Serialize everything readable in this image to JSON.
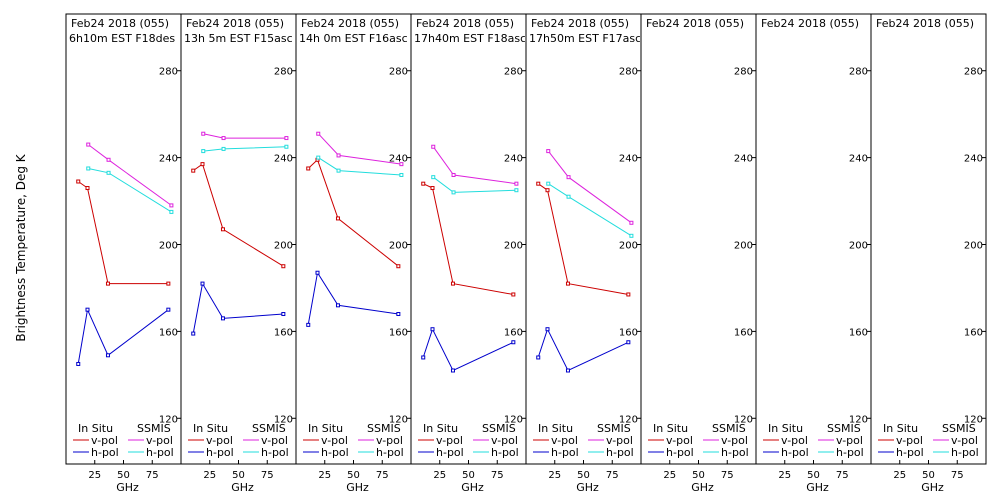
{
  "figure": {
    "ylabel": "Brightness Temperature, Deg K",
    "xlabel": "GHz",
    "legend_labels": {
      "in_situ": "In Situ",
      "ssmis": "SSMIS",
      "vpol": "v-pol",
      "hpol": "h-pol"
    },
    "colors": {
      "insitu_v": "#cc0000",
      "insitu_h": "#0000cc",
      "ssmis_v": "#dd22dd",
      "ssmis_h": "#22dddd"
    }
  },
  "chart_data": [
    {
      "type": "line",
      "title": "Feb24 2018 (055)",
      "subtitle": "6h10m EST F18des",
      "xlabel": "GHz",
      "ylabel": "Brightness Temperature, Deg K",
      "xlim": [
        0,
        100
      ],
      "ylim": [
        110,
        290
      ],
      "xticks": [
        0,
        25,
        50,
        75,
        100
      ],
      "yticks": [
        120,
        160,
        200,
        240,
        280
      ],
      "series": [
        {
          "name": "In Situ v-pol",
          "x": [
            10.65,
            18.7,
            36.5,
            89
          ],
          "y": [
            229,
            226,
            182,
            182
          ]
        },
        {
          "name": "In Situ h-pol",
          "x": [
            10.65,
            18.7,
            36.5,
            89
          ],
          "y": [
            145,
            170,
            149,
            170
          ]
        },
        {
          "name": "SSMIS v-pol",
          "x": [
            19.35,
            37,
            91.65
          ],
          "y": [
            246,
            239,
            218
          ]
        },
        {
          "name": "SSMIS h-pol",
          "x": [
            19.35,
            37,
            91.65
          ],
          "y": [
            235,
            233,
            215
          ]
        }
      ]
    },
    {
      "type": "line",
      "title": "Feb24 2018 (055)",
      "subtitle": "13h 5m EST F15asc",
      "xlabel": "GHz",
      "xlim": [
        0,
        100
      ],
      "ylim": [
        110,
        290
      ],
      "xticks": [
        0,
        25,
        50,
        75,
        100
      ],
      "yticks": [
        120,
        160,
        200,
        240,
        280
      ],
      "series": [
        {
          "name": "In Situ v-pol",
          "x": [
            10.65,
            18.7,
            36.5,
            89
          ],
          "y": [
            234,
            237,
            207,
            190
          ]
        },
        {
          "name": "In Situ h-pol",
          "x": [
            10.65,
            18.7,
            36.5,
            89
          ],
          "y": [
            159,
            182,
            166,
            168
          ]
        },
        {
          "name": "SSMIS v-pol",
          "x": [
            19.35,
            37,
            91.65
          ],
          "y": [
            251,
            249,
            249
          ]
        },
        {
          "name": "SSMIS h-pol",
          "x": [
            19.35,
            37,
            91.65
          ],
          "y": [
            243,
            244,
            245
          ]
        }
      ]
    },
    {
      "type": "line",
      "title": "Feb24 2018 (055)",
      "subtitle": "14h 0m EST F16asc",
      "xlabel": "GHz",
      "xlim": [
        0,
        100
      ],
      "ylim": [
        110,
        290
      ],
      "xticks": [
        0,
        25,
        50,
        75,
        100
      ],
      "yticks": [
        120,
        160,
        200,
        240,
        280
      ],
      "series": [
        {
          "name": "In Situ v-pol",
          "x": [
            10.65,
            18.7,
            36.5,
            89
          ],
          "y": [
            235,
            239,
            212,
            190
          ]
        },
        {
          "name": "In Situ h-pol",
          "x": [
            10.65,
            18.7,
            36.5,
            89
          ],
          "y": [
            163,
            187,
            172,
            168
          ]
        },
        {
          "name": "SSMIS v-pol",
          "x": [
            19.35,
            37,
            91.65
          ],
          "y": [
            251,
            241,
            237
          ]
        },
        {
          "name": "SSMIS h-pol",
          "x": [
            19.35,
            37,
            91.65
          ],
          "y": [
            240,
            234,
            232
          ]
        }
      ]
    },
    {
      "type": "line",
      "title": "Feb24 2018 (055)",
      "subtitle": "17h40m EST F18asc",
      "xlabel": "GHz",
      "xlim": [
        0,
        100
      ],
      "ylim": [
        110,
        290
      ],
      "xticks": [
        0,
        25,
        50,
        75,
        100
      ],
      "yticks": [
        120,
        160,
        200,
        240,
        280
      ],
      "series": [
        {
          "name": "In Situ v-pol",
          "x": [
            10.65,
            18.7,
            36.5,
            89
          ],
          "y": [
            228,
            226,
            182,
            177
          ]
        },
        {
          "name": "In Situ h-pol",
          "x": [
            10.65,
            18.7,
            36.5,
            89
          ],
          "y": [
            148,
            161,
            142,
            155
          ]
        },
        {
          "name": "SSMIS v-pol",
          "x": [
            19.35,
            37,
            91.65
          ],
          "y": [
            245,
            232,
            228
          ]
        },
        {
          "name": "SSMIS h-pol",
          "x": [
            19.35,
            37,
            91.65
          ],
          "y": [
            231,
            224,
            225
          ]
        }
      ]
    },
    {
      "type": "line",
      "title": "Feb24 2018 (055)",
      "subtitle": "17h50m EST F17asc",
      "xlabel": "GHz",
      "xlim": [
        0,
        100
      ],
      "ylim": [
        110,
        290
      ],
      "xticks": [
        0,
        25,
        50,
        75,
        100
      ],
      "yticks": [
        120,
        160,
        200,
        240,
        280
      ],
      "series": [
        {
          "name": "In Situ v-pol",
          "x": [
            10.65,
            18.7,
            36.5,
            89
          ],
          "y": [
            228,
            225,
            182,
            177
          ]
        },
        {
          "name": "In Situ h-pol",
          "x": [
            10.65,
            18.7,
            36.5,
            89
          ],
          "y": [
            148,
            161,
            142,
            155
          ]
        },
        {
          "name": "SSMIS v-pol",
          "x": [
            19.35,
            37,
            91.65
          ],
          "y": [
            243,
            231,
            210
          ]
        },
        {
          "name": "SSMIS h-pol",
          "x": [
            19.35,
            37,
            91.65
          ],
          "y": [
            228,
            222,
            204
          ]
        }
      ]
    },
    {
      "type": "line",
      "title": "Feb24 2018 (055)",
      "subtitle": "",
      "xlabel": "GHz",
      "xlim": [
        0,
        100
      ],
      "ylim": [
        110,
        290
      ],
      "xticks": [
        0,
        25,
        50,
        75,
        100
      ],
      "yticks": [
        120,
        160,
        200,
        240,
        280
      ],
      "series": []
    },
    {
      "type": "line",
      "title": "Feb24 2018 (055)",
      "subtitle": "",
      "xlabel": "GHz",
      "xlim": [
        0,
        100
      ],
      "ylim": [
        110,
        290
      ],
      "xticks": [
        0,
        25,
        50,
        75,
        100
      ],
      "yticks": [
        120,
        160,
        200,
        240,
        280
      ],
      "series": []
    },
    {
      "type": "line",
      "title": "Feb24 2018 (055)",
      "subtitle": "",
      "xlabel": "GHz",
      "xlim": [
        0,
        100
      ],
      "ylim": [
        110,
        290
      ],
      "xticks": [
        0,
        25,
        50,
        75,
        100
      ],
      "yticks": [
        120,
        160,
        200,
        240,
        280
      ],
      "series": []
    }
  ]
}
